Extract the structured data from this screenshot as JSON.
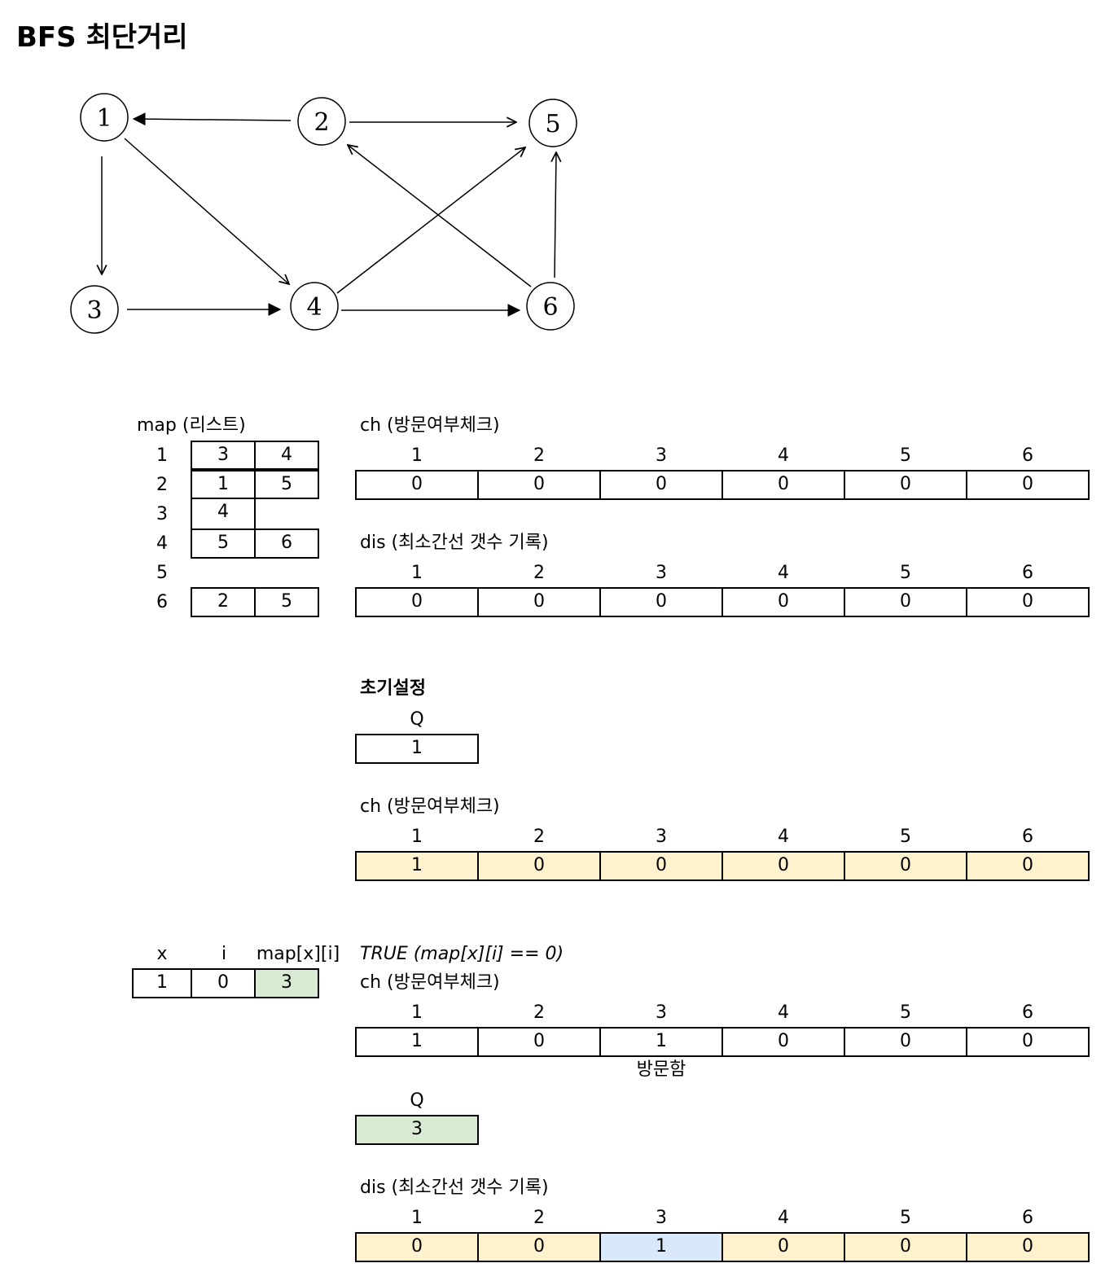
{
  "title": "BFS 최단거리",
  "graph": {
    "nodes": [
      "1",
      "2",
      "3",
      "4",
      "5",
      "6"
    ],
    "edges": [
      {
        "from": "2",
        "to": "1"
      },
      {
        "from": "2",
        "to": "5"
      },
      {
        "from": "1",
        "to": "3"
      },
      {
        "from": "1",
        "to": "4"
      },
      {
        "from": "3",
        "to": "4"
      },
      {
        "from": "4",
        "to": "5"
      },
      {
        "from": "4",
        "to": "6"
      },
      {
        "from": "6",
        "to": "2"
      },
      {
        "from": "6",
        "to": "5"
      }
    ]
  },
  "map": {
    "label": "map (리스트)",
    "rows": [
      {
        "index": "1",
        "values": [
          "3",
          "4"
        ]
      },
      {
        "index": "2",
        "values": [
          "1",
          "5"
        ]
      },
      {
        "index": "3",
        "values": [
          "4"
        ]
      },
      {
        "index": "4",
        "values": [
          "5",
          "6"
        ]
      },
      {
        "index": "5",
        "values": []
      },
      {
        "index": "6",
        "values": [
          "2",
          "5"
        ]
      }
    ]
  },
  "ch_initial": {
    "label": "ch (방문여부체크)",
    "headers": [
      "1",
      "2",
      "3",
      "4",
      "5",
      "6"
    ],
    "values": [
      "0",
      "0",
      "0",
      "0",
      "0",
      "0"
    ]
  },
  "dis_initial": {
    "label": "dis (최소간선 갯수 기록)",
    "headers": [
      "1",
      "2",
      "3",
      "4",
      "5",
      "6"
    ],
    "values": [
      "0",
      "0",
      "0",
      "0",
      "0",
      "0"
    ]
  },
  "setup": {
    "heading": "초기설정",
    "queue_label": "Q",
    "queue_values": [
      "1"
    ],
    "ch_label": "ch (방문여부체크)",
    "ch_headers": [
      "1",
      "2",
      "3",
      "4",
      "5",
      "6"
    ],
    "ch_values": [
      "1",
      "0",
      "0",
      "0",
      "0",
      "0"
    ]
  },
  "step": {
    "var_headers": [
      "x",
      "i",
      "map[x][i]"
    ],
    "var_values": [
      "1",
      "0",
      "3"
    ],
    "condition": "TRUE (map[x][i] == 0)",
    "ch_label": "ch (방문여부체크)",
    "ch_headers": [
      "1",
      "2",
      "3",
      "4",
      "5",
      "6"
    ],
    "ch_values": [
      "1",
      "0",
      "1",
      "0",
      "0",
      "0"
    ],
    "visited_note": "방문함",
    "queue_label": "Q",
    "queue_values": [
      "3"
    ],
    "dis_label": "dis (최소간선 갯수 기록)",
    "dis_headers": [
      "1",
      "2",
      "3",
      "4",
      "5",
      "6"
    ],
    "dis_values": [
      "0",
      "0",
      "1",
      "0",
      "0",
      "0"
    ]
  },
  "colors": {
    "visited_fill": "#fff2cc",
    "queue_fill": "#d9ead3",
    "dis_update_fill": "#dae8fc"
  }
}
